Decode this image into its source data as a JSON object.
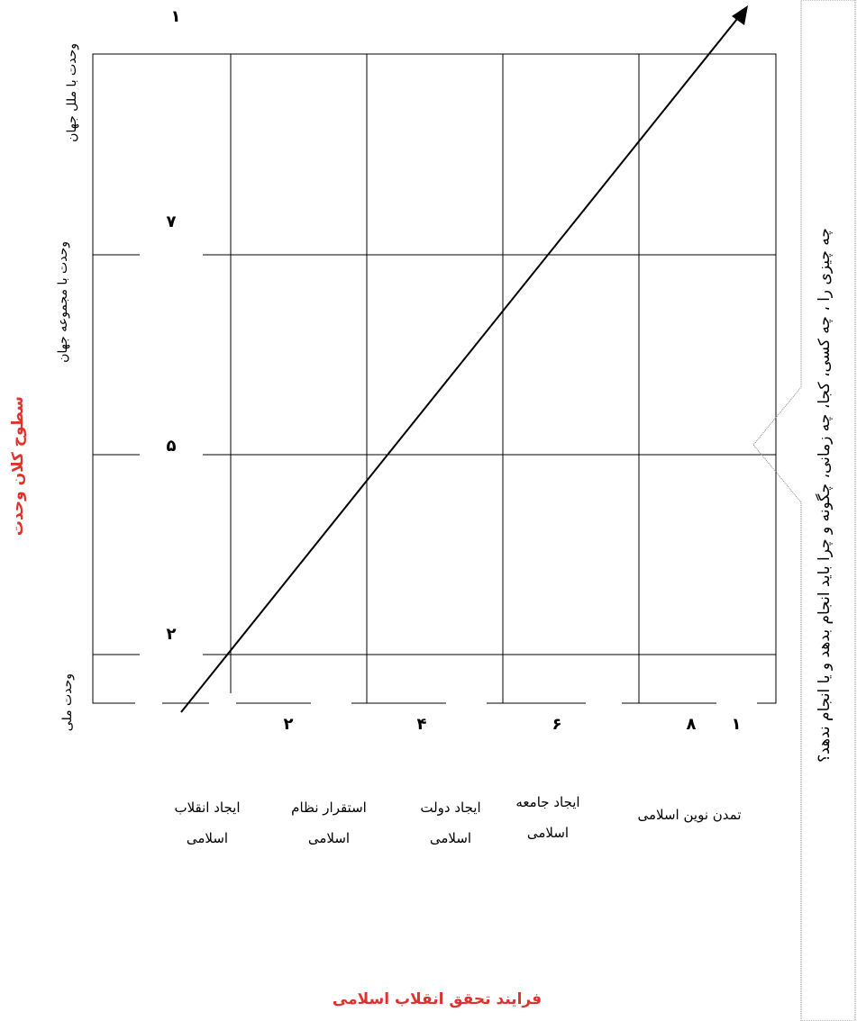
{
  "diagram": {
    "y_axis_title": "سطوح کلان وحدت",
    "x_axis_title": "فرایند تحقق انقلاب اسلامی",
    "question_text": "چه چیزی را ، چه کسی، کجا، چه زمانی، چگونه و چرا باید انجام بدهد و یا انجام ندهد؟",
    "levels": [
      {
        "label": "وحدت با ملل جهان",
        "number": "۱"
      },
      {
        "label": "وحدت با مجموعه جهان",
        "number": "۷"
      },
      {
        "label": "",
        "number": "۵"
      },
      {
        "label": "وحدت ملی",
        "number": "۲"
      }
    ],
    "stages": [
      {
        "number": "۲",
        "line1": "ایجاد انقلاب",
        "line2": "اسلامی"
      },
      {
        "number": "۴",
        "line1": "استقرار نظام",
        "line2": "اسلامی"
      },
      {
        "number": "۶",
        "line1": "ایجاد دولت",
        "line2": "اسلامی"
      },
      {
        "number": "۸",
        "line1": "ایجاد جامعه",
        "line2": "اسلامی"
      },
      {
        "number": "۱",
        "line1": "تمدن نوین اسلامی",
        "line2": ""
      }
    ]
  }
}
